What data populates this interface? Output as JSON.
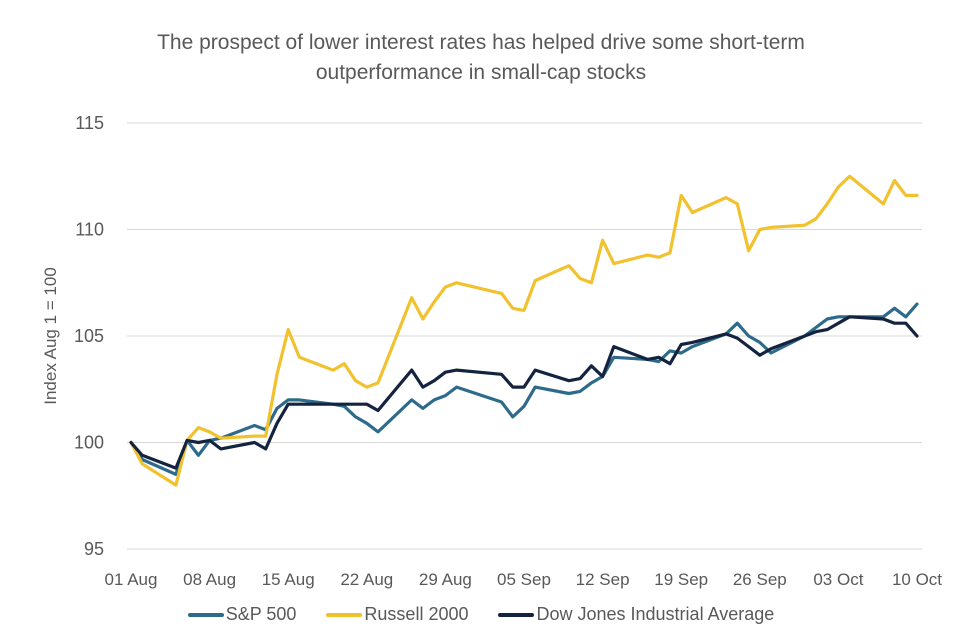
{
  "chart_data": {
    "type": "line",
    "title_lines": [
      "The prospect of lower interest rates has helped drive some short-term",
      "outperformance in small-cap stocks"
    ],
    "title": "The prospect of lower interest rates has helped drive some short-term outperformance in small-cap stocks",
    "xlabel": "",
    "ylabel": "Index Aug 1 = 100",
    "ylim": [
      95,
      115
    ],
    "yticks": [
      95,
      100,
      105,
      110,
      115
    ],
    "x_unit": "calendar days since 01 Aug",
    "xlim": [
      0,
      70
    ],
    "xticks": [
      {
        "day": 0,
        "label": "01 Aug"
      },
      {
        "day": 7,
        "label": "08 Aug"
      },
      {
        "day": 14,
        "label": "15 Aug"
      },
      {
        "day": 21,
        "label": "22 Aug"
      },
      {
        "day": 28,
        "label": "29 Aug"
      },
      {
        "day": 35,
        "label": "05 Sep"
      },
      {
        "day": 42,
        "label": "12 Sep"
      },
      {
        "day": 49,
        "label": "19 Sep"
      },
      {
        "day": 56,
        "label": "26 Sep"
      },
      {
        "day": 63,
        "label": "03 Oct"
      },
      {
        "day": 70,
        "label": "10 Oct"
      }
    ],
    "grid": "horizontal",
    "legend_position": "bottom",
    "x": [
      0,
      1,
      4,
      5,
      6,
      7,
      8,
      11,
      12,
      13,
      14,
      15,
      18,
      19,
      20,
      21,
      22,
      25,
      26,
      27,
      28,
      29,
      33,
      34,
      35,
      36,
      39,
      40,
      41,
      42,
      43,
      46,
      47,
      48,
      49,
      50,
      53,
      54,
      55,
      56,
      57,
      60,
      61,
      62,
      63,
      64,
      67,
      68,
      69,
      70
    ],
    "series": [
      {
        "name": "S&P 500",
        "color": "#2E6B8A",
        "values": [
          100,
          99.2,
          98.5,
          100.1,
          99.4,
          100.1,
          100.2,
          100.8,
          100.6,
          101.6,
          102.0,
          102.0,
          101.8,
          101.7,
          101.2,
          100.9,
          100.5,
          102.0,
          101.6,
          102.0,
          102.2,
          102.6,
          101.9,
          101.2,
          101.7,
          102.6,
          102.3,
          102.4,
          102.8,
          103.1,
          104.0,
          103.9,
          103.8,
          104.3,
          104.2,
          104.5,
          105.1,
          105.6,
          105.0,
          104.7,
          104.2,
          105.0,
          105.4,
          105.8,
          105.9,
          105.9,
          105.9,
          106.3,
          105.9,
          106.5
        ]
      },
      {
        "name": "Russell 2000",
        "color": "#F2C12E",
        "values": [
          100,
          99.0,
          98.0,
          100.1,
          100.7,
          100.5,
          100.2,
          100.3,
          100.3,
          103.2,
          105.3,
          104.0,
          103.4,
          103.7,
          102.9,
          102.6,
          102.8,
          106.8,
          105.8,
          106.6,
          107.3,
          107.5,
          107.0,
          106.3,
          106.2,
          107.6,
          108.3,
          107.7,
          107.5,
          109.5,
          108.4,
          108.8,
          108.7,
          108.9,
          111.6,
          110.8,
          111.5,
          111.2,
          109.0,
          110.0,
          110.1,
          110.2,
          110.5,
          111.2,
          112.0,
          112.5,
          111.2,
          112.3,
          111.6,
          111.6
        ]
      },
      {
        "name": "Dow Jones Industrial Average",
        "color": "#14233F",
        "values": [
          100,
          99.4,
          98.8,
          100.1,
          100.0,
          100.1,
          99.7,
          100.0,
          99.7,
          100.9,
          101.8,
          101.8,
          101.8,
          101.8,
          101.8,
          101.8,
          101.5,
          103.4,
          102.6,
          102.9,
          103.3,
          103.4,
          103.2,
          102.6,
          102.6,
          103.4,
          102.9,
          103.0,
          103.6,
          103.1,
          104.5,
          103.9,
          104.0,
          103.7,
          104.6,
          104.7,
          105.1,
          104.9,
          104.5,
          104.1,
          104.4,
          105.0,
          105.2,
          105.3,
          105.6,
          105.9,
          105.8,
          105.6,
          105.6,
          105.0
        ]
      }
    ]
  }
}
